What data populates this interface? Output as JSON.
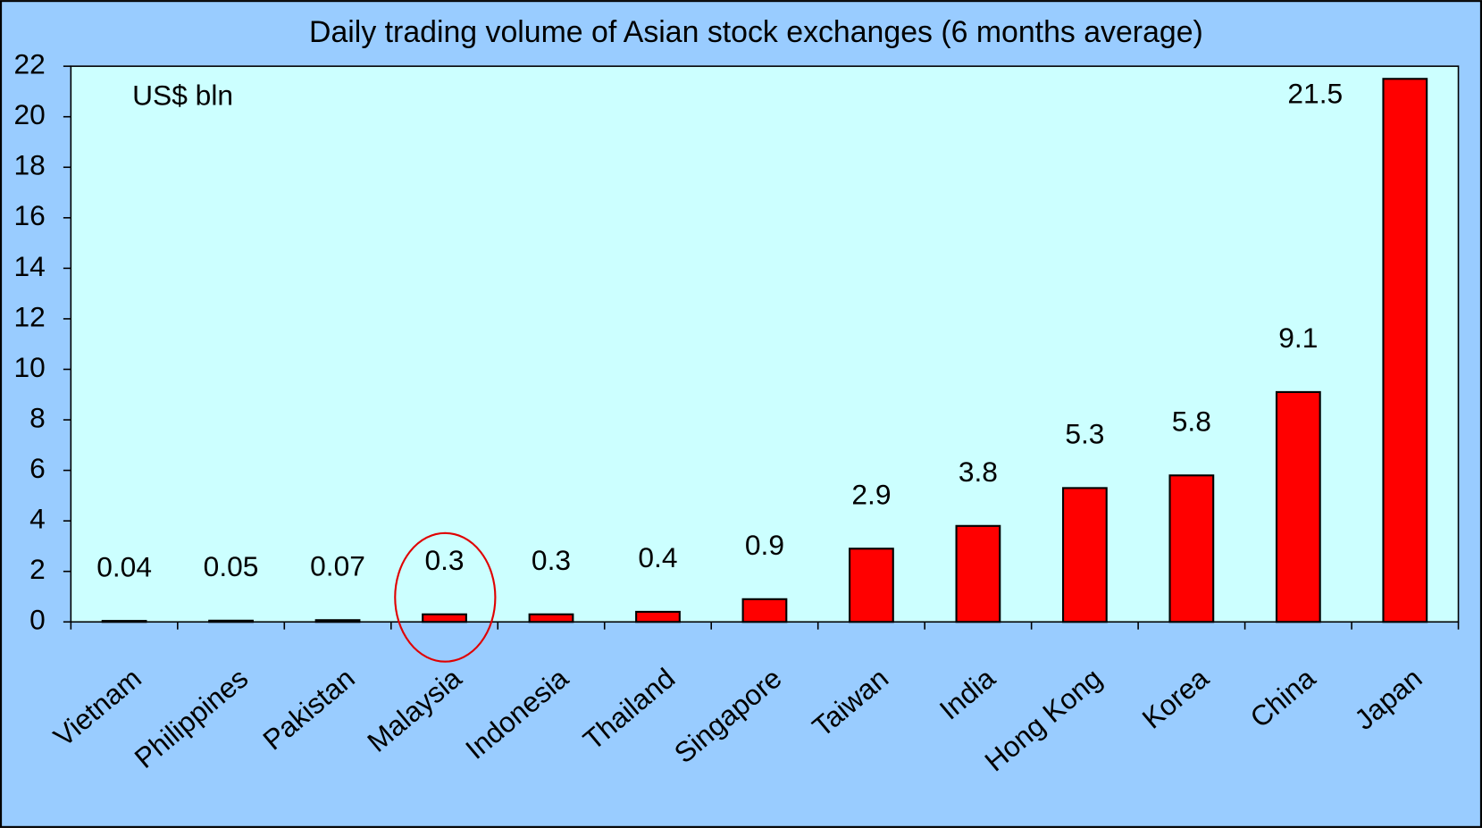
{
  "chart_data": {
    "type": "bar",
    "title": "Daily trading volume of Asian stock exchanges (6 months average)",
    "annotation": "US$ bln",
    "categories": [
      "Vietnam",
      "Philippines",
      "Pakistan",
      "Malaysia",
      "Indonesia",
      "Thailand",
      "Singapore",
      "Taiwan",
      "India",
      "Hong Kong",
      "Korea",
      "China",
      "Japan"
    ],
    "values": [
      0.04,
      0.05,
      0.07,
      0.3,
      0.3,
      0.4,
      0.9,
      2.9,
      3.8,
      5.3,
      5.8,
      9.1,
      21.5
    ],
    "color": "#ff0000",
    "ylim": [
      0,
      22
    ],
    "yticks": [
      0,
      2,
      4,
      6,
      8,
      10,
      12,
      14,
      16,
      18,
      20,
      22
    ],
    "grid": false
  }
}
